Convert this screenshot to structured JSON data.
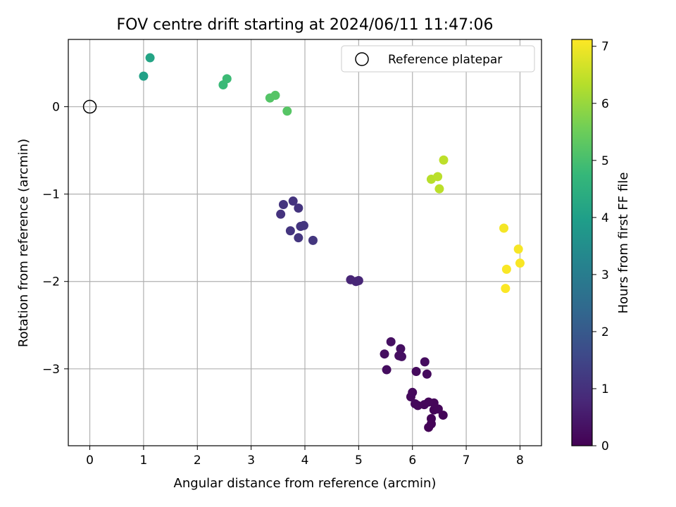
{
  "chart_data": {
    "type": "scatter",
    "title": "FOV centre drift starting at 2024/06/11 11:47:06",
    "xlabel": "Angular distance from reference (arcmin)",
    "ylabel": "Rotation from reference (arcmin)",
    "xlim": [
      -0.4,
      8.4
    ],
    "ylim": [
      -3.88,
      0.77
    ],
    "xticks": [
      0,
      1,
      2,
      3,
      4,
      5,
      6,
      7,
      8
    ],
    "xtick_labels": [
      "0",
      "1",
      "2",
      "3",
      "4",
      "5",
      "6",
      "7",
      "8"
    ],
    "yticks": [
      -3,
      -2,
      -1,
      0
    ],
    "ytick_labels": [
      "−3",
      "−2",
      "−1",
      "0"
    ],
    "grid": true,
    "legend": {
      "placement": "top-right",
      "entries": [
        "Reference platepar"
      ]
    },
    "reference_point": {
      "label": "Reference platepar",
      "x": 0,
      "y": 0
    },
    "colormap": "viridis",
    "colormap_stops": [
      "#440154",
      "#482878",
      "#3e4989",
      "#31688e",
      "#26828e",
      "#1f9e89",
      "#35b779",
      "#6ece58",
      "#b5de2b",
      "#fde725"
    ],
    "colorbar": {
      "label": "Hours from first FF file",
      "range": [
        0,
        7.12
      ],
      "ticks": [
        0,
        1,
        2,
        3,
        4,
        5,
        6,
        7
      ],
      "tick_labels": [
        "0",
        "1",
        "2",
        "3",
        "4",
        "5",
        "6",
        "7"
      ]
    },
    "series": [
      {
        "points": [
          {
            "x": 6.3,
            "y": -3.67,
            "c": 0.05
          },
          {
            "x": 6.35,
            "y": -3.63,
            "c": 0.06
          },
          {
            "x": 6.35,
            "y": -3.57,
            "c": 0.07
          },
          {
            "x": 6.57,
            "y": -3.53,
            "c": 0.08
          },
          {
            "x": 6.4,
            "y": -3.47,
            "c": 0.09
          },
          {
            "x": 6.48,
            "y": -3.46,
            "c": 0.1
          },
          {
            "x": 6.4,
            "y": -3.39,
            "c": 0.11
          },
          {
            "x": 6.3,
            "y": -3.38,
            "c": 0.12
          },
          {
            "x": 6.22,
            "y": -3.41,
            "c": 0.13
          },
          {
            "x": 6.1,
            "y": -3.42,
            "c": 0.14
          },
          {
            "x": 6.05,
            "y": -3.4,
            "c": 0.15
          },
          {
            "x": 5.97,
            "y": -3.32,
            "c": 0.16
          },
          {
            "x": 6.0,
            "y": -3.27,
            "c": 0.17
          },
          {
            "x": 6.07,
            "y": -3.03,
            "c": 0.18
          },
          {
            "x": 6.27,
            "y": -3.06,
            "c": 0.2
          },
          {
            "x": 6.23,
            "y": -2.92,
            "c": 0.22
          },
          {
            "x": 5.52,
            "y": -3.01,
            "c": 0.24
          },
          {
            "x": 5.48,
            "y": -2.83,
            "c": 0.26
          },
          {
            "x": 5.75,
            "y": -2.85,
            "c": 0.27
          },
          {
            "x": 5.8,
            "y": -2.86,
            "c": 0.28
          },
          {
            "x": 5.78,
            "y": -2.77,
            "c": 0.29
          },
          {
            "x": 5.6,
            "y": -2.69,
            "c": 0.3
          },
          {
            "x": 4.85,
            "y": -1.98,
            "c": 0.75
          },
          {
            "x": 4.95,
            "y": -2.0,
            "c": 0.77
          },
          {
            "x": 5.0,
            "y": -1.99,
            "c": 0.78
          },
          {
            "x": 3.55,
            "y": -1.23,
            "c": 1.05
          },
          {
            "x": 3.6,
            "y": -1.12,
            "c": 1.07
          },
          {
            "x": 3.78,
            "y": -1.08,
            "c": 1.08
          },
          {
            "x": 3.88,
            "y": -1.16,
            "c": 1.09
          },
          {
            "x": 3.73,
            "y": -1.42,
            "c": 1.1
          },
          {
            "x": 3.92,
            "y": -1.37,
            "c": 1.11
          },
          {
            "x": 3.98,
            "y": -1.36,
            "c": 1.12
          },
          {
            "x": 3.88,
            "y": -1.5,
            "c": 1.13
          },
          {
            "x": 4.15,
            "y": -1.53,
            "c": 1.14
          },
          {
            "x": 1.0,
            "y": 0.35,
            "c": 4.05
          },
          {
            "x": 1.12,
            "y": 0.56,
            "c": 4.15
          },
          {
            "x": 2.48,
            "y": 0.25,
            "c": 4.8
          },
          {
            "x": 2.55,
            "y": 0.32,
            "c": 4.85
          },
          {
            "x": 3.35,
            "y": 0.1,
            "c": 5.18
          },
          {
            "x": 3.45,
            "y": 0.13,
            "c": 5.2
          },
          {
            "x": 3.67,
            "y": -0.05,
            "c": 5.22
          },
          {
            "x": 6.35,
            "y": -0.83,
            "c": 6.35
          },
          {
            "x": 6.47,
            "y": -0.8,
            "c": 6.38
          },
          {
            "x": 6.5,
            "y": -0.94,
            "c": 6.4
          },
          {
            "x": 6.58,
            "y": -0.61,
            "c": 6.42
          },
          {
            "x": 7.7,
            "y": -1.39,
            "c": 7.02
          },
          {
            "x": 7.97,
            "y": -1.63,
            "c": 7.04
          },
          {
            "x": 8.0,
            "y": -1.79,
            "c": 7.06
          },
          {
            "x": 7.75,
            "y": -1.86,
            "c": 7.08
          },
          {
            "x": 7.73,
            "y": -2.08,
            "c": 7.1
          }
        ]
      }
    ]
  }
}
